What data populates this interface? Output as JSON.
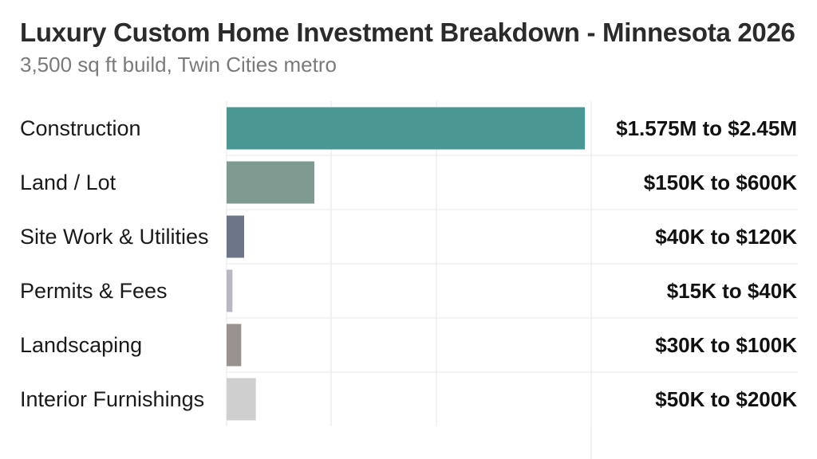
{
  "chart_data": {
    "type": "bar",
    "orientation": "horizontal",
    "title": "Luxury Custom Home Investment Breakdown - Minnesota 2026",
    "subtitle": "3,500 sq ft build, Twin Cities metro",
    "categories": [
      "Construction",
      "Land / Lot",
      "Site Work & Utilities",
      "Permits & Fees",
      "Landscaping",
      "Interior Furnishings"
    ],
    "values": [
      2450000,
      600000,
      120000,
      40000,
      100000,
      200000
    ],
    "value_labels": [
      "$1.575M to $2.45M",
      "$150K to $600K",
      "$40K to $120K",
      "$15K to $40K",
      "$30K to $100K",
      "$50K to $200K"
    ],
    "colors": [
      "#4a9793",
      "#7f9a91",
      "#6d7689",
      "#b8b8c2",
      "#9a928c",
      "#cfcfcf"
    ],
    "xlim": [
      0,
      2450000
    ],
    "grid": true,
    "legend": "none"
  }
}
